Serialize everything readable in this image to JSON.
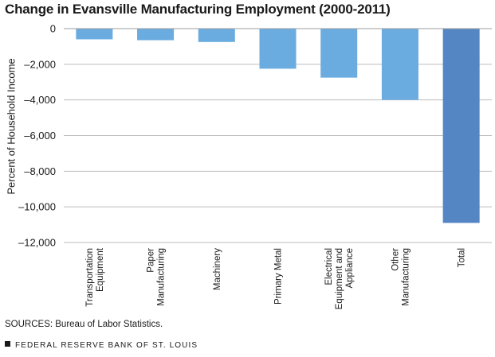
{
  "chart_data": {
    "type": "bar",
    "title": "Change in Evansville Manufacturing Employment (2000-2011)",
    "ylabel": "Percent of Household Income",
    "xlabel": "",
    "ylim": [
      -12000,
      0
    ],
    "yticks": [
      0,
      -2000,
      -4000,
      -6000,
      -8000,
      -10000,
      -12000
    ],
    "ytick_labels": [
      "0",
      "–2,000",
      "–4,000",
      "–6,000",
      "–8,000",
      "–10,000",
      "–12,000"
    ],
    "grid": "horizontal",
    "categories": [
      [
        "Transportation",
        "Equipment"
      ],
      [
        "Paper",
        "Manufacturing"
      ],
      [
        "Machinery"
      ],
      [
        "Primary Metal"
      ],
      [
        "Electrical",
        "Equipment and",
        "Appliance"
      ],
      [
        "Other",
        "Manufacturing"
      ],
      [
        "Total"
      ]
    ],
    "values": [
      -600,
      -650,
      -750,
      -2250,
      -2750,
      -4000,
      -10900
    ],
    "colors": [
      "#6aace0",
      "#6aace0",
      "#6aace0",
      "#6aace0",
      "#6aace0",
      "#6aace0",
      "#5486c4"
    ]
  },
  "source": "SOURCES: Bureau of Labor Statistics.",
  "footer": "FEDERAL RESERVE BANK OF ST. LOUIS"
}
